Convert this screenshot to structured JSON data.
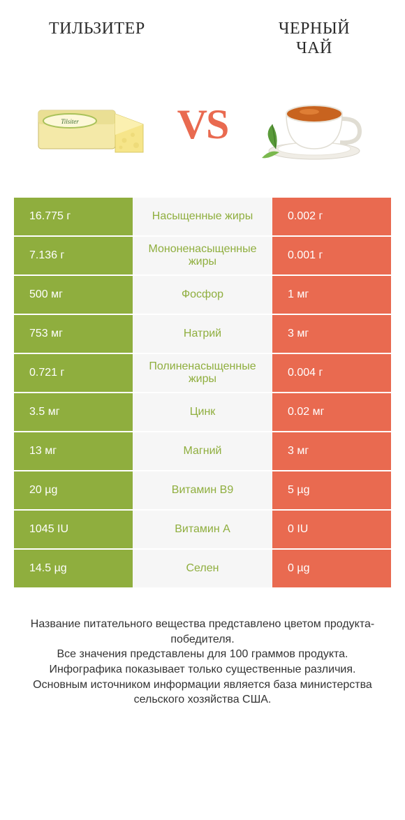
{
  "colors": {
    "green": "#8fae3e",
    "orange": "#e96a50",
    "row_bg": "#f7f7f7",
    "text": "#333333"
  },
  "header": {
    "left_title": "ТИЛЬЗИТЕР",
    "right_title_line1": "ЧЕРНЫЙ",
    "right_title_line2": "ЧАЙ",
    "vs": "VS"
  },
  "table": {
    "rows": [
      {
        "left": "16.775 г",
        "mid": "Насыщенные жиры",
        "right": "0.002 г",
        "winner": "left"
      },
      {
        "left": "7.136 г",
        "mid": "Мононенасыщенные жиры",
        "right": "0.001 г",
        "winner": "left"
      },
      {
        "left": "500 мг",
        "mid": "Фосфор",
        "right": "1 мг",
        "winner": "left"
      },
      {
        "left": "753 мг",
        "mid": "Натрий",
        "right": "3 мг",
        "winner": "left"
      },
      {
        "left": "0.721 г",
        "mid": "Полиненасыщенные жиры",
        "right": "0.004 г",
        "winner": "left"
      },
      {
        "left": "3.5 мг",
        "mid": "Цинк",
        "right": "0.02 мг",
        "winner": "left"
      },
      {
        "left": "13 мг",
        "mid": "Магний",
        "right": "3 мг",
        "winner": "left"
      },
      {
        "left": "20 µg",
        "mid": "Витамин B9",
        "right": "5 µg",
        "winner": "left"
      },
      {
        "left": "1045 IU",
        "mid": "Витамин A",
        "right": "0 IU",
        "winner": "left"
      },
      {
        "left": "14.5 µg",
        "mid": "Селен",
        "right": "0 µg",
        "winner": "left"
      }
    ]
  },
  "footer": {
    "lines": [
      "Название питательного вещества представлено цветом продукта-победителя.",
      "Все значения представлены для 100 граммов продукта.",
      "Инфографика показывает только существенные различия.",
      "Основным источником информации является база министерства сельского хозяйства США."
    ]
  }
}
